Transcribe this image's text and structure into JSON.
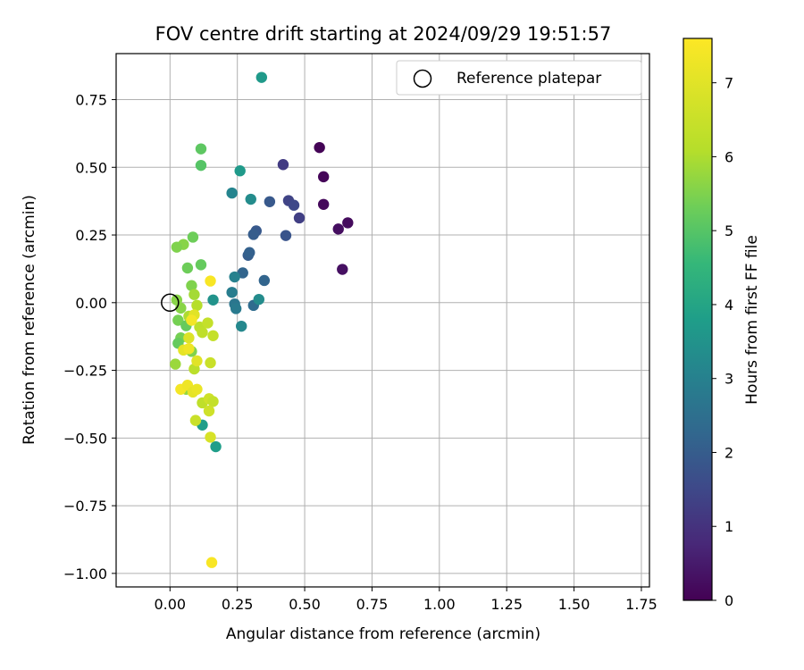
{
  "chart_data": {
    "type": "scatter",
    "title": "FOV centre drift starting at 2024/09/29 19:51:57",
    "xlabel": "Angular distance from reference (arcmin)",
    "ylabel": "Rotation from reference (arcmin)",
    "colorbar_label": "Hours from first FF file",
    "colormap": "viridis",
    "xlim": [
      -0.2,
      1.78
    ],
    "ylim": [
      -1.05,
      0.92
    ],
    "clim": [
      0,
      7.6
    ],
    "xticks": [
      0.0,
      0.25,
      0.5,
      0.75,
      1.0,
      1.25,
      1.5,
      1.75
    ],
    "xtick_labels": [
      "0.00",
      "0.25",
      "0.50",
      "0.75",
      "1.00",
      "1.25",
      "1.50",
      "1.75"
    ],
    "yticks": [
      -1.0,
      -0.75,
      -0.5,
      -0.25,
      0.0,
      0.25,
      0.5,
      0.75
    ],
    "ytick_labels": [
      "−1.00",
      "−0.75",
      "−0.50",
      "−0.25",
      "0.00",
      "0.25",
      "0.50",
      "0.75"
    ],
    "cticks": [
      0,
      1,
      2,
      3,
      4,
      5,
      6,
      7
    ],
    "ctick_labels": [
      "0",
      "1",
      "2",
      "3",
      "4",
      "5",
      "6",
      "7"
    ],
    "grid": true,
    "legend": {
      "position": "top-right",
      "label": "Reference platepar"
    },
    "reference_point": {
      "x": 0.0,
      "y": 0.0
    },
    "points": [
      {
        "x": 0.555,
        "y": 0.573,
        "t": 0.05
      },
      {
        "x": 0.57,
        "y": 0.465,
        "t": 0.1
      },
      {
        "x": 0.57,
        "y": 0.363,
        "t": 0.15
      },
      {
        "x": 0.66,
        "y": 0.295,
        "t": 0.2
      },
      {
        "x": 0.625,
        "y": 0.272,
        "t": 0.25
      },
      {
        "x": 0.64,
        "y": 0.123,
        "t": 0.3
      },
      {
        "x": 0.42,
        "y": 0.51,
        "t": 1.2
      },
      {
        "x": 0.48,
        "y": 0.313,
        "t": 1.3
      },
      {
        "x": 0.44,
        "y": 0.377,
        "t": 1.4
      },
      {
        "x": 0.46,
        "y": 0.36,
        "t": 1.5
      },
      {
        "x": 0.37,
        "y": 0.373,
        "t": 1.9
      },
      {
        "x": 0.43,
        "y": 0.248,
        "t": 1.8
      },
      {
        "x": 0.32,
        "y": 0.265,
        "t": 1.9
      },
      {
        "x": 0.31,
        "y": 0.252,
        "t": 2.0
      },
      {
        "x": 0.29,
        "y": 0.175,
        "t": 2.0
      },
      {
        "x": 0.295,
        "y": 0.185,
        "t": 2.1
      },
      {
        "x": 0.27,
        "y": 0.11,
        "t": 2.2
      },
      {
        "x": 0.35,
        "y": 0.082,
        "t": 2.2
      },
      {
        "x": 0.31,
        "y": -0.01,
        "t": 2.4
      },
      {
        "x": 0.24,
        "y": -0.005,
        "t": 2.7
      },
      {
        "x": 0.245,
        "y": -0.022,
        "t": 2.8
      },
      {
        "x": 0.23,
        "y": 0.038,
        "t": 2.9
      },
      {
        "x": 0.24,
        "y": 0.095,
        "t": 3.0
      },
      {
        "x": 0.3,
        "y": 0.382,
        "t": 3.3
      },
      {
        "x": 0.23,
        "y": 0.405,
        "t": 3.1
      },
      {
        "x": 0.33,
        "y": 0.012,
        "t": 3.3
      },
      {
        "x": 0.265,
        "y": -0.087,
        "t": 3.2
      },
      {
        "x": 0.16,
        "y": 0.01,
        "t": 3.5
      },
      {
        "x": 0.34,
        "y": 0.832,
        "t": 3.7
      },
      {
        "x": 0.26,
        "y": 0.487,
        "t": 3.7
      },
      {
        "x": 0.17,
        "y": -0.532,
        "t": 3.8
      },
      {
        "x": 0.12,
        "y": -0.452,
        "t": 3.8
      },
      {
        "x": 0.115,
        "y": 0.507,
        "t": 5.0
      },
      {
        "x": 0.115,
        "y": 0.568,
        "t": 5.1
      },
      {
        "x": 0.115,
        "y": 0.14,
        "t": 5.2
      },
      {
        "x": 0.065,
        "y": 0.128,
        "t": 5.3
      },
      {
        "x": 0.085,
        "y": 0.242,
        "t": 5.3
      },
      {
        "x": 0.05,
        "y": 0.215,
        "t": 5.6
      },
      {
        "x": 0.025,
        "y": 0.205,
        "t": 5.5
      },
      {
        "x": 0.08,
        "y": 0.063,
        "t": 5.5
      },
      {
        "x": 0.025,
        "y": 0.01,
        "t": 5.6
      },
      {
        "x": 0.04,
        "y": -0.02,
        "t": 5.6
      },
      {
        "x": 0.03,
        "y": -0.065,
        "t": 5.4
      },
      {
        "x": 0.06,
        "y": -0.085,
        "t": 5.2
      },
      {
        "x": 0.04,
        "y": -0.13,
        "t": 5.4
      },
      {
        "x": 0.03,
        "y": -0.15,
        "t": 5.2
      },
      {
        "x": 0.08,
        "y": -0.18,
        "t": 5.5
      },
      {
        "x": 0.06,
        "y": -0.32,
        "t": 5.7
      },
      {
        "x": 0.02,
        "y": -0.227,
        "t": 5.8
      },
      {
        "x": 0.09,
        "y": 0.03,
        "t": 5.9
      },
      {
        "x": 0.1,
        "y": -0.01,
        "t": 6.1
      },
      {
        "x": 0.09,
        "y": -0.245,
        "t": 6.2
      },
      {
        "x": 0.07,
        "y": -0.05,
        "t": 6.0
      },
      {
        "x": 0.11,
        "y": -0.09,
        "t": 6.2
      },
      {
        "x": 0.12,
        "y": -0.11,
        "t": 6.3
      },
      {
        "x": 0.14,
        "y": -0.075,
        "t": 6.4
      },
      {
        "x": 0.16,
        "y": -0.122,
        "t": 6.4
      },
      {
        "x": 0.15,
        "y": -0.222,
        "t": 6.5
      },
      {
        "x": 0.12,
        "y": -0.37,
        "t": 6.3
      },
      {
        "x": 0.095,
        "y": -0.435,
        "t": 6.5
      },
      {
        "x": 0.145,
        "y": -0.355,
        "t": 6.6
      },
      {
        "x": 0.16,
        "y": -0.365,
        "t": 6.4
      },
      {
        "x": 0.145,
        "y": -0.4,
        "t": 6.6
      },
      {
        "x": 0.15,
        "y": -0.497,
        "t": 6.8
      },
      {
        "x": 0.07,
        "y": -0.13,
        "t": 6.9
      },
      {
        "x": 0.1,
        "y": -0.215,
        "t": 7.0
      },
      {
        "x": 0.05,
        "y": -0.175,
        "t": 7.1
      },
      {
        "x": 0.07,
        "y": -0.17,
        "t": 7.3
      },
      {
        "x": 0.09,
        "y": -0.045,
        "t": 7.0
      },
      {
        "x": 0.08,
        "y": -0.065,
        "t": 7.4
      },
      {
        "x": 0.04,
        "y": -0.32,
        "t": 7.4
      },
      {
        "x": 0.065,
        "y": -0.305,
        "t": 7.3
      },
      {
        "x": 0.085,
        "y": -0.33,
        "t": 7.1
      },
      {
        "x": 0.1,
        "y": -0.32,
        "t": 7.2
      },
      {
        "x": 0.15,
        "y": 0.08,
        "t": 7.5
      },
      {
        "x": 0.155,
        "y": -0.96,
        "t": 7.5
      }
    ]
  }
}
